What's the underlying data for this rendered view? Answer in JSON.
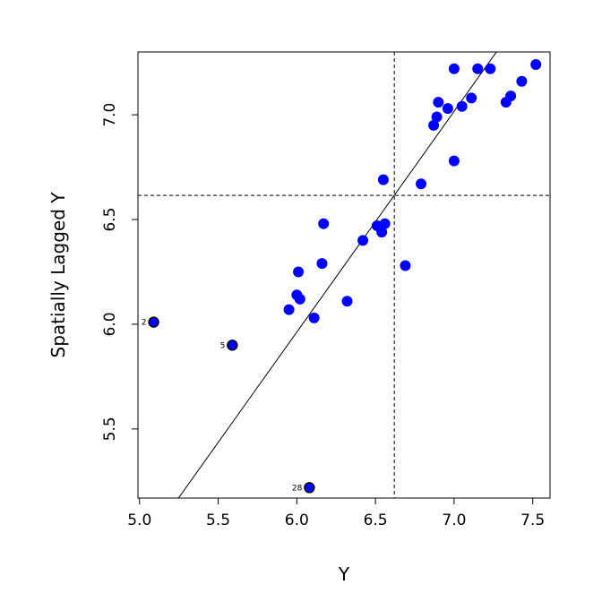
{
  "chart_data": {
    "type": "scatter",
    "title": "",
    "xlabel": "Y",
    "ylabel": "Spatially Lagged Y",
    "xlim": [
      4.99,
      7.61
    ],
    "ylim": [
      5.17,
      7.3
    ],
    "x_ticks": [
      "5.0",
      "5.5",
      "6.0",
      "6.5",
      "7.0",
      "7.5"
    ],
    "y_ticks": [
      "5.5",
      "6.0",
      "6.5",
      "7.0"
    ],
    "grid": false,
    "legend": "none",
    "point_color": "#0000ff",
    "mean_x": 6.62,
    "mean_y": 6.615,
    "regression_line": {
      "intercept": -0.3596,
      "slope": 1.0537
    },
    "points": [
      {
        "x": 5.09,
        "y": 6.01,
        "label": "2"
      },
      {
        "x": 5.59,
        "y": 5.9,
        "label": "5"
      },
      {
        "x": 6.08,
        "y": 5.22,
        "label": "28"
      },
      {
        "x": 5.95,
        "y": 6.07,
        "label": ""
      },
      {
        "x": 6.0,
        "y": 6.14,
        "label": ""
      },
      {
        "x": 6.01,
        "y": 6.25,
        "label": ""
      },
      {
        "x": 6.02,
        "y": 6.12,
        "label": ""
      },
      {
        "x": 6.11,
        "y": 6.03,
        "label": ""
      },
      {
        "x": 6.16,
        "y": 6.29,
        "label": ""
      },
      {
        "x": 6.17,
        "y": 6.48,
        "label": ""
      },
      {
        "x": 6.32,
        "y": 6.11,
        "label": ""
      },
      {
        "x": 6.42,
        "y": 6.4,
        "label": ""
      },
      {
        "x": 6.51,
        "y": 6.47,
        "label": ""
      },
      {
        "x": 6.54,
        "y": 6.44,
        "label": ""
      },
      {
        "x": 6.56,
        "y": 6.48,
        "label": ""
      },
      {
        "x": 6.55,
        "y": 6.69,
        "label": ""
      },
      {
        "x": 6.69,
        "y": 6.28,
        "label": ""
      },
      {
        "x": 6.79,
        "y": 6.67,
        "label": ""
      },
      {
        "x": 6.87,
        "y": 6.95,
        "label": ""
      },
      {
        "x": 6.89,
        "y": 6.99,
        "label": ""
      },
      {
        "x": 6.9,
        "y": 7.06,
        "label": ""
      },
      {
        "x": 6.96,
        "y": 7.03,
        "label": ""
      },
      {
        "x": 7.0,
        "y": 7.22,
        "label": ""
      },
      {
        "x": 7.0,
        "y": 6.78,
        "label": ""
      },
      {
        "x": 7.05,
        "y": 7.04,
        "label": ""
      },
      {
        "x": 7.11,
        "y": 7.08,
        "label": ""
      },
      {
        "x": 7.15,
        "y": 7.22,
        "label": ""
      },
      {
        "x": 7.23,
        "y": 7.22,
        "label": ""
      },
      {
        "x": 7.33,
        "y": 7.06,
        "label": ""
      },
      {
        "x": 7.36,
        "y": 7.09,
        "label": ""
      },
      {
        "x": 7.43,
        "y": 7.16,
        "label": ""
      },
      {
        "x": 7.52,
        "y": 7.24,
        "label": ""
      }
    ]
  }
}
